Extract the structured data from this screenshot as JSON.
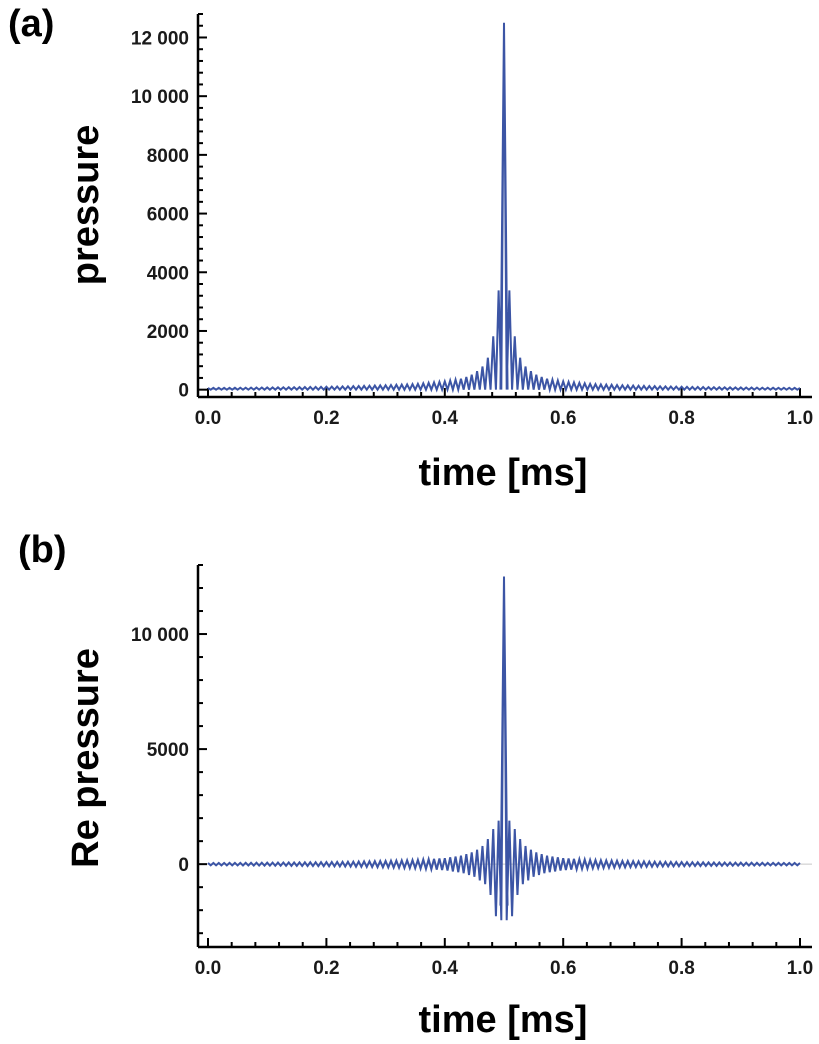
{
  "chart_data": [
    {
      "type": "line",
      "panel_label": "(a)",
      "xlabel": "time [ms]",
      "ylabel": "pressure",
      "xlim": [
        0,
        1
      ],
      "ylim": [
        -250,
        12800
      ],
      "xticks": [
        0.0,
        0.2,
        0.4,
        0.6,
        0.8,
        1.0
      ],
      "xtick_labels": [
        "0.0",
        "0.2",
        "0.4",
        "0.6",
        "0.8",
        "1.0"
      ],
      "yticks": [
        0,
        2000,
        4000,
        6000,
        8000,
        10000,
        12000
      ],
      "ytick_labels": [
        "0",
        "2000",
        "4000",
        "6000",
        "8000",
        "10 000",
        "12 000"
      ],
      "grid": false,
      "line_color": "#3c55a5",
      "series": [
        {
          "x": [
            0.0,
            0.05,
            0.1,
            0.15,
            0.2,
            0.25,
            0.3,
            0.35,
            0.4,
            0.43,
            0.45,
            0.47,
            0.48,
            0.49,
            0.495,
            0.5,
            0.505,
            0.51,
            0.52,
            0.53,
            0.55,
            0.57,
            0.6,
            0.65,
            0.7,
            0.75,
            0.8,
            0.85,
            0.9,
            0.95,
            1.0
          ],
          "y_upper": [
            60,
            65,
            75,
            85,
            100,
            120,
            150,
            190,
            280,
            380,
            550,
            900,
            1600,
            2800,
            6000,
            12500,
            6000,
            2800,
            1600,
            900,
            550,
            380,
            280,
            190,
            150,
            120,
            100,
            85,
            75,
            65,
            60
          ],
          "y_lower": [
            0,
            0,
            0,
            0,
            0,
            0,
            0,
            0,
            0,
            0,
            0,
            0,
            0,
            0,
            0,
            0,
            0,
            0,
            0,
            0,
            0,
            0,
            0,
            0,
            0,
            0,
            0,
            0,
            0,
            0,
            0
          ]
        }
      ]
    },
    {
      "type": "line",
      "panel_label": "(b)",
      "xlabel": "time [ms]",
      "ylabel": "Re pressure",
      "xlim": [
        0,
        1
      ],
      "ylim": [
        -3600,
        13000
      ],
      "xticks": [
        0.0,
        0.2,
        0.4,
        0.6,
        0.8,
        1.0
      ],
      "xtick_labels": [
        "0.0",
        "0.2",
        "0.4",
        "0.6",
        "0.8",
        "1.0"
      ],
      "yticks": [
        0,
        5000,
        10000
      ],
      "ytick_labels": [
        "0",
        "5000",
        "10 000"
      ],
      "grid": false,
      "line_color": "#3c55a5",
      "series": [
        {
          "x": [
            0.0,
            0.05,
            0.1,
            0.15,
            0.2,
            0.25,
            0.3,
            0.35,
            0.4,
            0.43,
            0.45,
            0.47,
            0.48,
            0.49,
            0.495,
            0.5,
            0.505,
            0.51,
            0.52,
            0.53,
            0.55,
            0.57,
            0.6,
            0.65,
            0.7,
            0.75,
            0.8,
            0.85,
            0.9,
            0.95,
            1.0
          ],
          "y_upper": [
            50,
            55,
            65,
            75,
            90,
            110,
            140,
            180,
            260,
            380,
            550,
            900,
            1600,
            1200,
            5000,
            12500,
            5000,
            1200,
            1600,
            900,
            550,
            380,
            260,
            180,
            140,
            110,
            90,
            75,
            65,
            55,
            50
          ],
          "y_lower": [
            -50,
            -55,
            -65,
            -75,
            -90,
            -110,
            -140,
            -180,
            -260,
            -380,
            -550,
            -900,
            -1500,
            -2700,
            -2500,
            -1800,
            -2500,
            -2700,
            -1500,
            -900,
            -550,
            -380,
            -260,
            -180,
            -140,
            -110,
            -90,
            -75,
            -65,
            -55,
            -50
          ]
        }
      ]
    }
  ]
}
